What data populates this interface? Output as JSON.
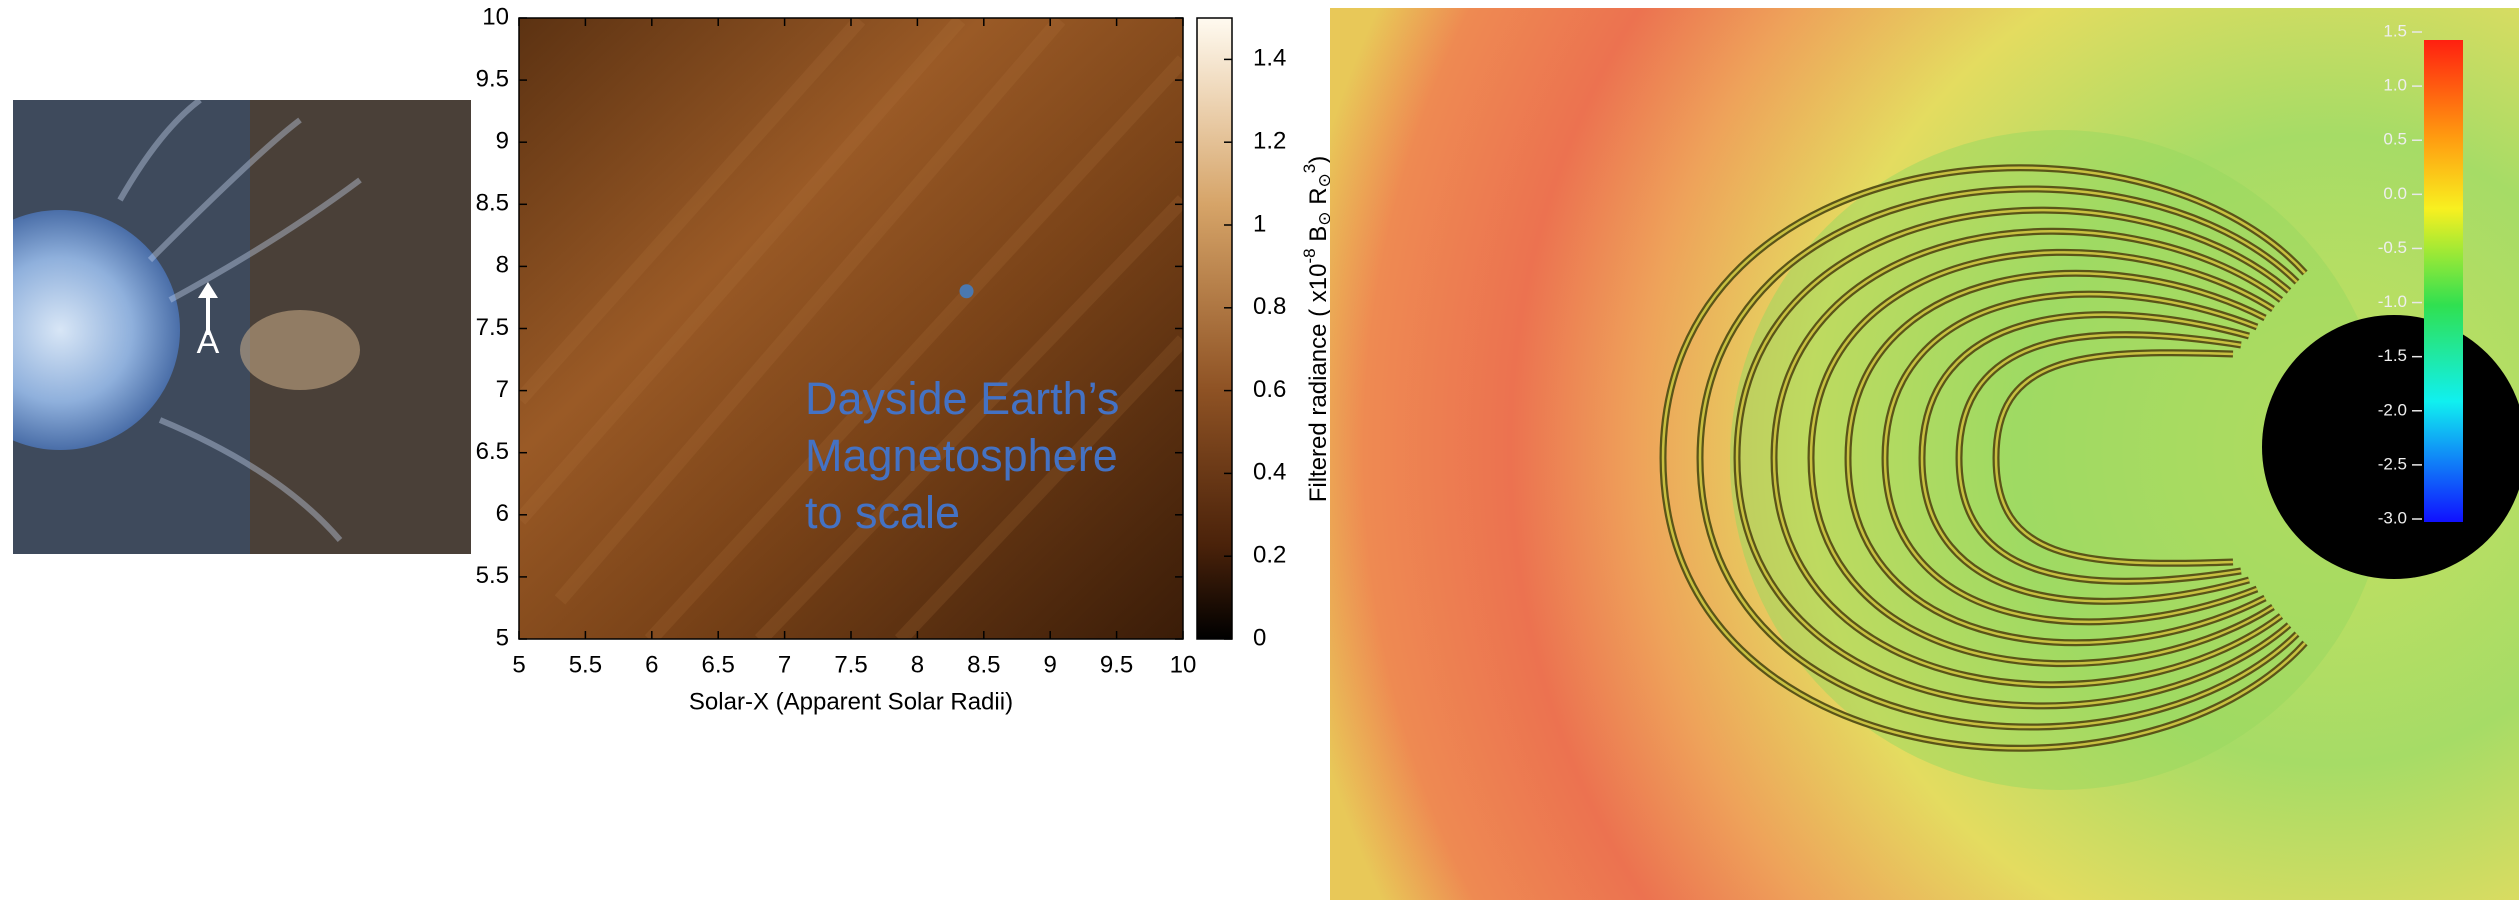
{
  "chart_data": {
    "type": "heatmap",
    "xlabel": "Solar-X (Apparent Solar Radii)",
    "xlim": [
      5,
      10
    ],
    "ylim": [
      5,
      10
    ],
    "xticks": [
      5,
      5.5,
      6,
      6.5,
      7,
      7.5,
      8,
      8.5,
      9,
      9.5,
      10
    ],
    "yticks": [
      5,
      5.5,
      6,
      6.5,
      7,
      7.5,
      8,
      8.5,
      9,
      9.5,
      10
    ],
    "colorbar": {
      "label_parts": [
        "Filtered radiance ( x10",
        "-8",
        " B",
        "⊙",
        " R",
        "⊙",
        "3",
        ")"
      ],
      "clim": [
        0,
        1.5
      ],
      "ticks": [
        0,
        0.2,
        0.4,
        0.6,
        0.8,
        1,
        1.2,
        1.4
      ]
    },
    "points": {
      "x": [
        8.37
      ],
      "y": [
        7.8
      ],
      "color": "#4a78b0"
    },
    "annotation": [
      "Dayside Earth’s",
      "Magnetosphere",
      "to scale"
    ],
    "annotation_color": "#4472c4"
  },
  "left_panel": {
    "label": "A"
  },
  "right_panel": {
    "colorbar": {
      "lim": [
        -3,
        1.5
      ],
      "ticks": [
        1.5,
        {
          "value": 1,
          "label": "1.0"
        },
        0.5,
        {
          "value": 0,
          "label": "0.0"
        },
        -0.5,
        {
          "value": -1,
          "label": "-1.0"
        },
        -1.5,
        {
          "value": -2,
          "label": "-2.0"
        },
        -2.5,
        {
          "value": -3,
          "label": "-3.0"
        }
      ]
    }
  }
}
